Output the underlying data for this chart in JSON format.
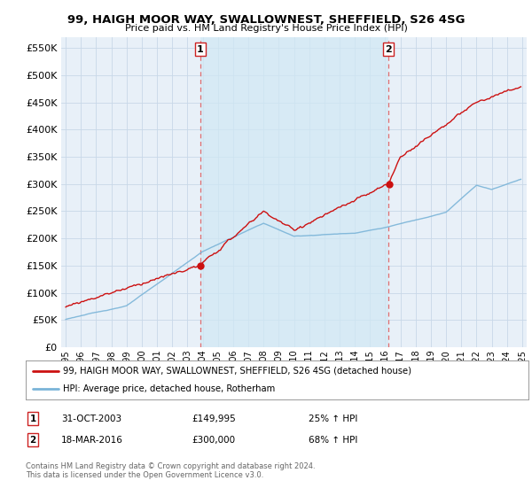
{
  "title": "99, HAIGH MOOR WAY, SWALLOWNEST, SHEFFIELD, S26 4SG",
  "subtitle": "Price paid vs. HM Land Registry's House Price Index (HPI)",
  "legend_line1": "99, HAIGH MOOR WAY, SWALLOWNEST, SHEFFIELD, S26 4SG (detached house)",
  "legend_line2": "HPI: Average price, detached house, Rotherham",
  "annotation1_label": "1",
  "annotation1_date": "31-OCT-2003",
  "annotation1_price": "£149,995",
  "annotation1_hpi": "25% ↑ HPI",
  "annotation2_label": "2",
  "annotation2_date": "18-MAR-2016",
  "annotation2_price": "£300,000",
  "annotation2_hpi": "68% ↑ HPI",
  "copyright": "Contains HM Land Registry data © Crown copyright and database right 2024.\nThis data is licensed under the Open Government Licence v3.0.",
  "sale1_year": 2003.83,
  "sale1_value": 149995,
  "sale2_year": 2016.21,
  "sale2_value": 300000,
  "hpi_color": "#7ab4d8",
  "price_color": "#cc1111",
  "vline_color": "#e06060",
  "shade_color": "#cce0f0",
  "background_color": "#e8f0f8",
  "plot_bg": "#e8f0f8",
  "ylim": [
    0,
    570000
  ],
  "xlim_start": 1994.7,
  "xlim_end": 2025.3,
  "yticks": [
    0,
    50000,
    100000,
    150000,
    200000,
    250000,
    300000,
    350000,
    400000,
    450000,
    500000,
    550000
  ],
  "ytick_labels": [
    "£0",
    "£50K",
    "£100K",
    "£150K",
    "£200K",
    "£250K",
    "£300K",
    "£350K",
    "£400K",
    "£450K",
    "£500K",
    "£550K"
  ]
}
